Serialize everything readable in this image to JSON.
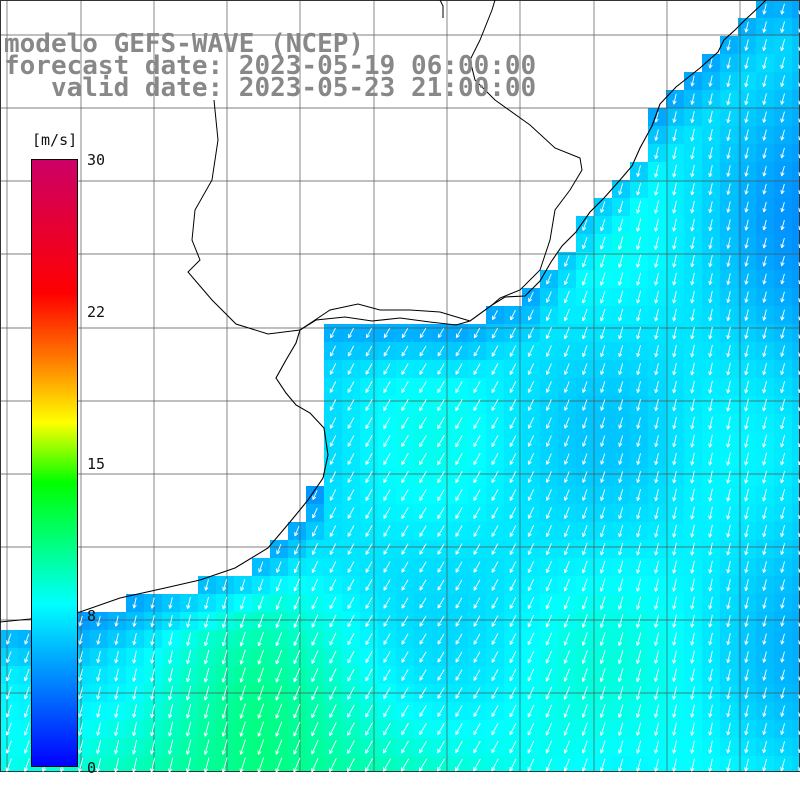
{
  "title": {
    "line1": "modelo GEFS-WAVE (NCEP)",
    "line2": "forecast date: 2023-05-19 06:00:00",
    "line3": "   valid date: 2023-05-23 21:00:00"
  },
  "colorbar": {
    "unit": "[m/s]",
    "ticks": [
      "30",
      "22",
      "15",
      "8",
      "0"
    ],
    "colors": [
      "#0000ff",
      "#00ffff",
      "#00ff00",
      "#ffff00",
      "#ff8000",
      "#ff0000",
      "#cc0066"
    ]
  },
  "field": {
    "variable": "wind speed",
    "min": 0,
    "max": 30,
    "dominant_value_range": [
      4,
      12
    ],
    "arrow_direction": "south-west",
    "arrow_color": "#ffffff",
    "land_color": "#ffffff",
    "grid_color": "#555555"
  }
}
